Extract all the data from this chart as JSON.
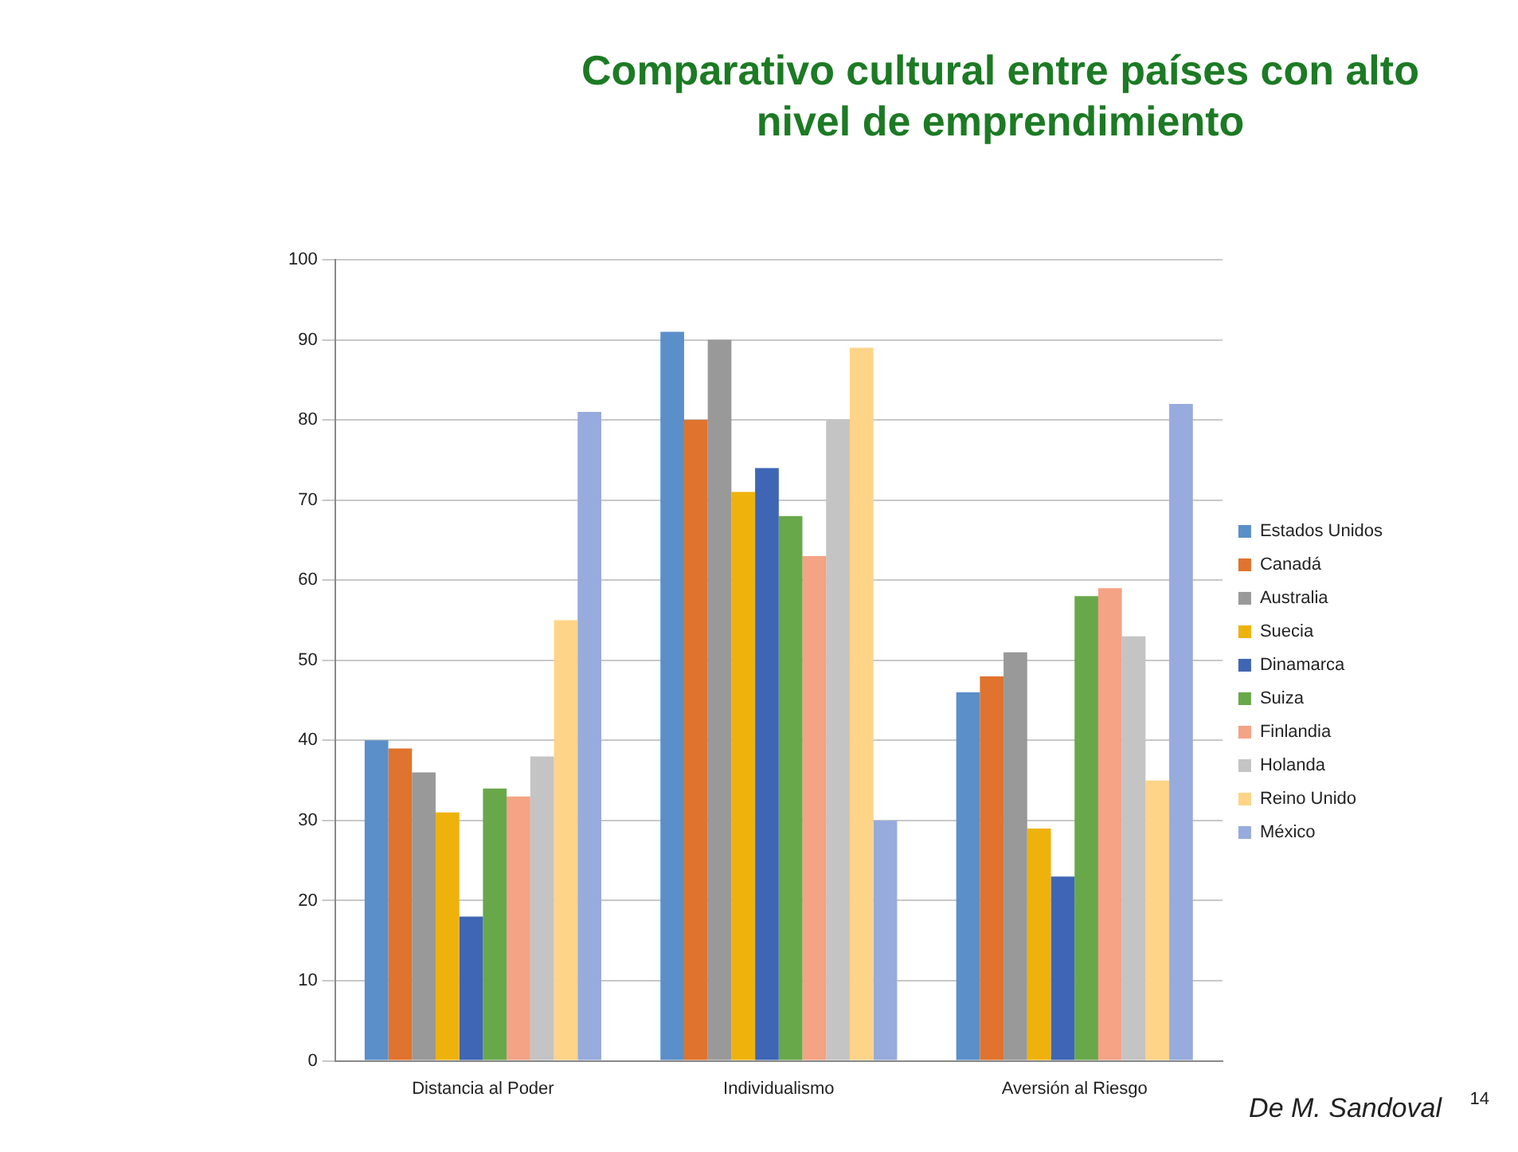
{
  "chart_data": {
    "type": "bar",
    "title": "Comparativo cultural entre países con alto nivel de emprendimiento",
    "categories": [
      "Distancia al Poder",
      "Individualismo",
      "Aversión al Riesgo"
    ],
    "series": [
      {
        "name": "Estados Unidos",
        "color": "#5b8fc9",
        "values": [
          40,
          91,
          46
        ]
      },
      {
        "name": "Canadá",
        "color": "#e0732e",
        "values": [
          39,
          80,
          48
        ]
      },
      {
        "name": "Australia",
        "color": "#999999",
        "values": [
          36,
          90,
          51
        ]
      },
      {
        "name": "Suecia",
        "color": "#efb20c",
        "values": [
          31,
          71,
          29
        ]
      },
      {
        "name": "Dinamarca",
        "color": "#3e66b5",
        "values": [
          18,
          74,
          23
        ]
      },
      {
        "name": "Suiza",
        "color": "#68a84a",
        "values": [
          34,
          68,
          58
        ]
      },
      {
        "name": "Finlandia",
        "color": "#f4a384",
        "values": [
          33,
          63,
          59
        ]
      },
      {
        "name": "Holanda",
        "color": "#c4c4c4",
        "values": [
          38,
          80,
          53
        ]
      },
      {
        "name": "Reino Unido",
        "color": "#fdd488",
        "values": [
          55,
          89,
          35
        ]
      },
      {
        "name": "México",
        "color": "#97abdc",
        "values": [
          81,
          30,
          82
        ]
      }
    ],
    "ylim": [
      0,
      100
    ],
    "yticks": [
      0,
      10,
      20,
      30,
      40,
      50,
      60,
      70,
      80,
      90,
      100
    ],
    "grid": "y",
    "legend": "right",
    "annotations": [
      "De M. Sandoval",
      "14"
    ]
  }
}
